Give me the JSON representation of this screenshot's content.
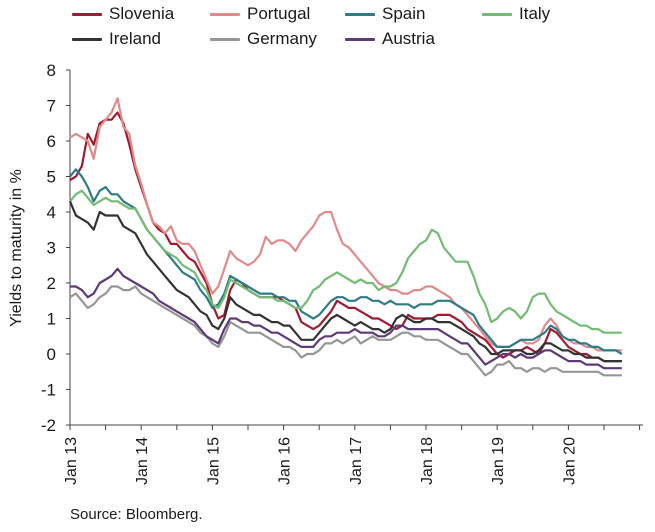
{
  "chart_data": {
    "type": "line",
    "ylabel": "Yields to maturity in %",
    "ylim": [
      -2,
      8
    ],
    "yticks": [
      "8",
      "7",
      "6",
      "5",
      "4",
      "3",
      "2",
      "1",
      "0",
      "-1",
      "-2"
    ],
    "xticks": [
      "Jan 13",
      "Jan 14",
      "Jan 15",
      "Jan 16",
      "Jan 17",
      "Jan 18",
      "Jan 19",
      "Jan 20"
    ],
    "x_start": "Jan 2013",
    "x_end": "Dec 2020",
    "grid": false,
    "legend_position": "top",
    "series": [
      {
        "name": "Slovenia",
        "color": "#9e1b32",
        "values": [
          4.9,
          5.0,
          5.3,
          6.2,
          5.9,
          6.5,
          6.6,
          6.6,
          6.8,
          6.5,
          5.9,
          5.2,
          4.7,
          4.2,
          3.7,
          3.5,
          3.4,
          3.1,
          3.1,
          2.9,
          2.7,
          2.6,
          2.3,
          2.0,
          1.4,
          1.0,
          1.1,
          1.8,
          2.1,
          2.0,
          1.8,
          1.7,
          1.6,
          1.6,
          1.6,
          1.6,
          1.5,
          1.4,
          1.3,
          0.9,
          0.8,
          0.7,
          0.8,
          1.0,
          1.2,
          1.5,
          1.4,
          1.3,
          1.3,
          1.2,
          1.1,
          1.0,
          1.0,
          0.9,
          0.8,
          0.7,
          0.8,
          1.1,
          1.0,
          1.0,
          1.0,
          1.0,
          1.1,
          1.1,
          1.1,
          1.0,
          0.9,
          0.7,
          0.6,
          0.5,
          0.4,
          0.2,
          0.0,
          -0.1,
          0.0,
          0.1,
          0.1,
          0.2,
          0.1,
          0.0,
          0.3,
          0.7,
          0.6,
          0.4,
          0.2,
          0.1,
          0.0,
          0.0,
          -0.1,
          -0.1,
          -0.2,
          -0.2,
          -0.2,
          -0.2
        ]
      },
      {
        "name": "Portugal",
        "color": "#e08a8a",
        "values": [
          6.1,
          6.2,
          6.1,
          6.0,
          5.5,
          6.4,
          6.6,
          6.8,
          7.2,
          6.4,
          6.2,
          5.3,
          4.8,
          4.2,
          3.7,
          3.6,
          3.4,
          3.6,
          3.2,
          3.1,
          3.1,
          2.9,
          2.5,
          2.1,
          1.7,
          1.9,
          2.4,
          2.9,
          2.7,
          2.6,
          2.5,
          2.6,
          2.8,
          3.3,
          3.1,
          3.2,
          3.2,
          3.1,
          2.9,
          3.2,
          3.4,
          3.6,
          3.9,
          4.0,
          4.0,
          3.5,
          3.1,
          3.0,
          2.8,
          2.6,
          2.4,
          2.2,
          2.0,
          1.9,
          1.8,
          1.8,
          1.7,
          1.7,
          1.8,
          1.8,
          1.9,
          1.9,
          1.8,
          1.7,
          1.6,
          1.4,
          1.3,
          1.1,
          0.9,
          0.7,
          0.5,
          0.3,
          0.2,
          0.2,
          0.2,
          0.3,
          0.4,
          0.3,
          0.3,
          0.4,
          0.8,
          1.0,
          0.8,
          0.5,
          0.4,
          0.3,
          0.3,
          0.2,
          0.2,
          0.1,
          0.1,
          0.1,
          0.1,
          0.1
        ]
      },
      {
        "name": "Spain",
        "color": "#2e7b88",
        "values": [
          5.0,
          5.2,
          5.0,
          4.7,
          4.3,
          4.6,
          4.7,
          4.5,
          4.5,
          4.3,
          4.2,
          4.1,
          3.8,
          3.5,
          3.3,
          3.1,
          2.9,
          2.7,
          2.5,
          2.3,
          2.2,
          2.1,
          1.8,
          1.6,
          1.3,
          1.4,
          1.7,
          2.2,
          2.1,
          2.0,
          1.9,
          1.8,
          1.7,
          1.7,
          1.7,
          1.6,
          1.6,
          1.5,
          1.5,
          1.2,
          1.1,
          1.0,
          1.1,
          1.3,
          1.5,
          1.6,
          1.6,
          1.5,
          1.5,
          1.6,
          1.6,
          1.5,
          1.5,
          1.4,
          1.5,
          1.4,
          1.4,
          1.4,
          1.3,
          1.4,
          1.4,
          1.4,
          1.5,
          1.5,
          1.5,
          1.4,
          1.3,
          1.2,
          1.1,
          0.8,
          0.6,
          0.4,
          0.2,
          0.2,
          0.2,
          0.3,
          0.4,
          0.4,
          0.4,
          0.5,
          0.6,
          0.8,
          0.7,
          0.5,
          0.4,
          0.4,
          0.3,
          0.3,
          0.2,
          0.2,
          0.1,
          0.1,
          0.1,
          0.0
        ]
      },
      {
        "name": "Italy",
        "color": "#74bb74",
        "values": [
          4.3,
          4.5,
          4.6,
          4.4,
          4.2,
          4.3,
          4.4,
          4.3,
          4.3,
          4.2,
          4.1,
          4.1,
          3.8,
          3.5,
          3.3,
          3.1,
          2.9,
          2.8,
          2.7,
          2.5,
          2.4,
          2.3,
          2.0,
          1.8,
          1.4,
          1.3,
          1.6,
          2.1,
          2.0,
          1.9,
          1.8,
          1.7,
          1.6,
          1.6,
          1.6,
          1.5,
          1.5,
          1.4,
          1.3,
          1.3,
          1.5,
          1.8,
          1.9,
          2.1,
          2.2,
          2.3,
          2.2,
          2.1,
          2.0,
          2.1,
          2.0,
          2.0,
          1.8,
          1.9,
          1.9,
          2.0,
          2.3,
          2.7,
          2.9,
          3.1,
          3.2,
          3.5,
          3.4,
          3.0,
          2.8,
          2.6,
          2.6,
          2.6,
          2.2,
          1.7,
          1.4,
          0.9,
          1.0,
          1.2,
          1.3,
          1.2,
          1.0,
          1.2,
          1.6,
          1.7,
          1.7,
          1.4,
          1.2,
          1.1,
          1.0,
          0.9,
          0.8,
          0.8,
          0.7,
          0.7,
          0.6,
          0.6,
          0.6,
          0.6
        ]
      },
      {
        "name": "Ireland",
        "color": "#333333",
        "values": [
          4.3,
          3.9,
          3.8,
          3.7,
          3.5,
          4.0,
          3.9,
          3.9,
          3.9,
          3.6,
          3.5,
          3.4,
          3.1,
          2.8,
          2.6,
          2.4,
          2.2,
          2.0,
          1.8,
          1.7,
          1.6,
          1.4,
          1.2,
          1.1,
          0.8,
          0.7,
          1.0,
          1.6,
          1.4,
          1.3,
          1.2,
          1.1,
          1.1,
          1.0,
          0.9,
          0.9,
          0.8,
          0.8,
          0.6,
          0.4,
          0.4,
          0.4,
          0.6,
          0.8,
          1.0,
          1.1,
          1.0,
          0.9,
          0.8,
          0.9,
          0.8,
          0.7,
          0.7,
          0.6,
          0.7,
          1.0,
          1.1,
          1.0,
          0.9,
          0.9,
          1.0,
          1.0,
          0.9,
          0.9,
          0.9,
          0.8,
          0.7,
          0.6,
          0.5,
          0.3,
          0.2,
          0.0,
          0.0,
          0.1,
          0.1,
          0.1,
          0.1,
          0.0,
          0.0,
          0.1,
          0.3,
          0.3,
          0.2,
          0.1,
          0.1,
          0.0,
          0.0,
          -0.1,
          -0.1,
          -0.1,
          -0.2,
          -0.2,
          -0.2,
          -0.2
        ]
      },
      {
        "name": "Germany",
        "color": "#969696",
        "values": [
          1.6,
          1.7,
          1.5,
          1.3,
          1.4,
          1.6,
          1.7,
          1.9,
          1.9,
          1.8,
          1.8,
          1.9,
          1.7,
          1.6,
          1.5,
          1.4,
          1.3,
          1.2,
          1.1,
          1.0,
          0.9,
          0.8,
          0.6,
          0.5,
          0.3,
          0.2,
          0.5,
          0.9,
          0.8,
          0.7,
          0.6,
          0.6,
          0.6,
          0.5,
          0.4,
          0.3,
          0.2,
          0.2,
          0.1,
          -0.1,
          0.0,
          0.0,
          0.1,
          0.3,
          0.3,
          0.4,
          0.3,
          0.4,
          0.5,
          0.3,
          0.4,
          0.5,
          0.4,
          0.4,
          0.4,
          0.5,
          0.6,
          0.6,
          0.5,
          0.5,
          0.4,
          0.4,
          0.4,
          0.3,
          0.2,
          0.1,
          0.0,
          0.0,
          -0.2,
          -0.4,
          -0.6,
          -0.5,
          -0.3,
          -0.3,
          -0.2,
          -0.4,
          -0.4,
          -0.5,
          -0.4,
          -0.4,
          -0.5,
          -0.4,
          -0.4,
          -0.5,
          -0.5,
          -0.5,
          -0.5,
          -0.5,
          -0.5,
          -0.5,
          -0.6,
          -0.6,
          -0.6,
          -0.6
        ]
      },
      {
        "name": "Austria",
        "color": "#5e3a78",
        "values": [
          1.9,
          1.9,
          1.8,
          1.6,
          1.7,
          2.0,
          2.1,
          2.2,
          2.4,
          2.2,
          2.1,
          2.0,
          1.9,
          1.8,
          1.7,
          1.5,
          1.4,
          1.3,
          1.2,
          1.1,
          1.0,
          0.9,
          0.7,
          0.5,
          0.4,
          0.3,
          0.7,
          1.0,
          1.0,
          0.9,
          0.9,
          0.8,
          0.8,
          0.7,
          0.6,
          0.6,
          0.5,
          0.4,
          0.3,
          0.2,
          0.2,
          0.2,
          0.4,
          0.5,
          0.5,
          0.6,
          0.6,
          0.6,
          0.7,
          0.6,
          0.6,
          0.6,
          0.5,
          0.5,
          0.6,
          0.8,
          0.8,
          0.7,
          0.7,
          0.7,
          0.7,
          0.7,
          0.7,
          0.6,
          0.5,
          0.4,
          0.3,
          0.3,
          0.1,
          -0.1,
          -0.3,
          -0.2,
          -0.1,
          0.0,
          0.0,
          -0.1,
          0.0,
          -0.1,
          -0.1,
          0.0,
          0.1,
          0.1,
          0.0,
          -0.1,
          -0.2,
          -0.2,
          -0.2,
          -0.3,
          -0.3,
          -0.3,
          -0.4,
          -0.4,
          -0.4,
          -0.4
        ]
      }
    ]
  },
  "footer": {
    "source": "Source: Bloomberg."
  }
}
